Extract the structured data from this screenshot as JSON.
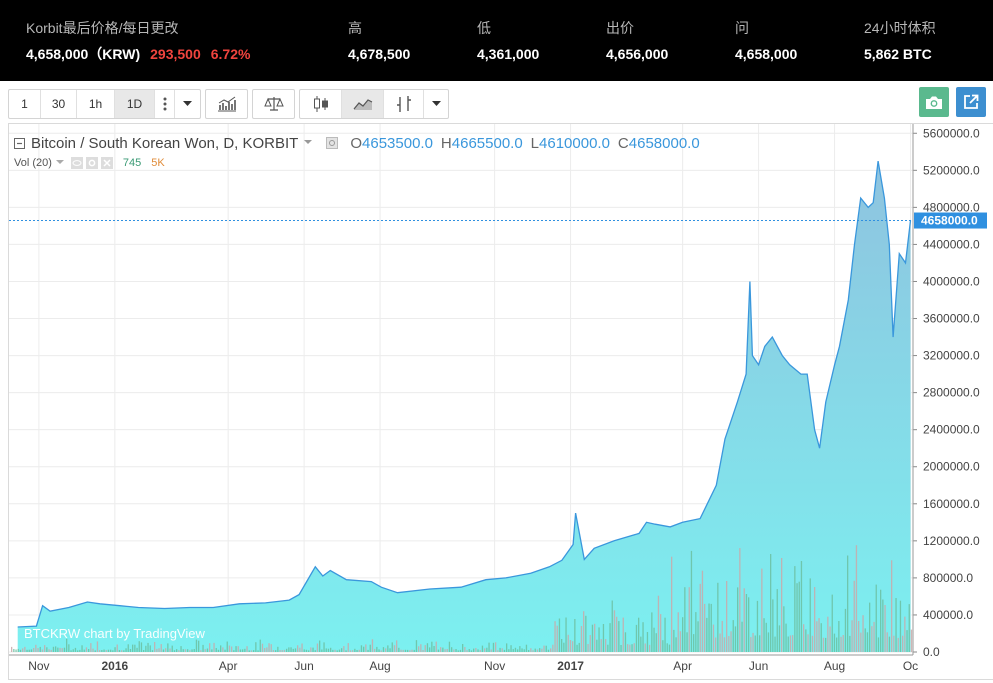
{
  "ticker": {
    "columns": [
      {
        "label": "Korbit最后价格/每日更改",
        "value": "4,658,000（KRW)"
      },
      {
        "label": "高",
        "value": "4,678,500"
      },
      {
        "label": "低",
        "value": "4,361,000"
      },
      {
        "label": "出价",
        "value": "4,656,000"
      },
      {
        "label": "问",
        "value": "4,658,000"
      },
      {
        "label": "24小时体积",
        "value": "5,862 BTC"
      }
    ],
    "change": "293,500",
    "change_pct": "6.72%"
  },
  "toolbar": {
    "intervals": [
      "1",
      "30",
      "1h",
      "1D"
    ],
    "active_interval": "1D",
    "icons": [
      "more-vert-icon",
      "dropdown-icon",
      "indicators-icon",
      "compare-icon",
      "candles-icon",
      "area-chart-icon",
      "bar-chart-icon",
      "dropdown-icon",
      "camera-icon",
      "popout-icon"
    ]
  },
  "legend": {
    "title": "Bitcoin / South Korean Won, D, KORBIT",
    "open_label": "O",
    "open": "4653500.0",
    "high_label": "H",
    "high": "4665500.0",
    "low_label": "L",
    "low": "4610000.0",
    "close_label": "C",
    "close": "4658000.0",
    "vol_label": "Vol (20)",
    "vol_value": "745",
    "vol_ma": "5K"
  },
  "watermark": "BTCKRW chart by TradingView",
  "colors": {
    "line": "#3a97dc",
    "area_top": "#8fc3df",
    "area_bottom": "#7cf0f0",
    "vol_green": "#6cbfa1",
    "vol_red": "#c9a9a9",
    "price_tag": "#2f90e0"
  },
  "chart_data": {
    "type": "area",
    "title": "Bitcoin / South Korean Won, D, KORBIT",
    "x": [
      "2015-10-15",
      "2015-10-30",
      "2015-11-04",
      "2015-11-10",
      "2015-11-25",
      "2015-12-10",
      "2015-12-20",
      "2016-01-05",
      "2016-01-20",
      "2016-02-10",
      "2016-03-01",
      "2016-03-20",
      "2016-04-10",
      "2016-05-01",
      "2016-05-20",
      "2016-05-28",
      "2016-06-10",
      "2016-06-16",
      "2016-06-22",
      "2016-07-05",
      "2016-07-25",
      "2016-08-02",
      "2016-08-15",
      "2016-09-10",
      "2016-10-05",
      "2016-10-25",
      "2016-11-10",
      "2016-11-30",
      "2016-12-15",
      "2016-12-25",
      "2017-01-03",
      "2017-01-05",
      "2017-01-12",
      "2017-01-20",
      "2017-02-05",
      "2017-02-25",
      "2017-03-03",
      "2017-03-10",
      "2017-03-22",
      "2017-04-01",
      "2017-04-15",
      "2017-04-28",
      "2017-05-05",
      "2017-05-15",
      "2017-05-22",
      "2017-05-25",
      "2017-05-27",
      "2017-06-01",
      "2017-06-06",
      "2017-06-12",
      "2017-06-20",
      "2017-06-26",
      "2017-07-05",
      "2017-07-10",
      "2017-07-16",
      "2017-07-20",
      "2017-07-25",
      "2017-08-01",
      "2017-08-05",
      "2017-08-12",
      "2017-08-17",
      "2017-08-22",
      "2017-08-28",
      "2017-09-01",
      "2017-09-05",
      "2017-09-10",
      "2017-09-14",
      "2017-09-17",
      "2017-09-22",
      "2017-09-27",
      "2017-10-01"
    ],
    "y": [
      270000,
      280000,
      500000,
      440000,
      480000,
      540000,
      520000,
      500000,
      480000,
      470000,
      480000,
      480000,
      520000,
      530000,
      560000,
      620000,
      920000,
      820000,
      880000,
      780000,
      760000,
      700000,
      640000,
      680000,
      700000,
      780000,
      800000,
      850000,
      920000,
      990000,
      1160000,
      1500000,
      1000000,
      1120000,
      1200000,
      1280000,
      1400000,
      1380000,
      1350000,
      1400000,
      1440000,
      1800000,
      2300000,
      2700000,
      3000000,
      4000000,
      3200000,
      3100000,
      3300000,
      3400000,
      3200000,
      3100000,
      3000000,
      3000000,
      2400000,
      2200000,
      2700000,
      3100000,
      3300000,
      3800000,
      4400000,
      4900000,
      4800000,
      4850000,
      5300000,
      4900000,
      4400000,
      3400000,
      4300000,
      4200000,
      4658000
    ],
    "ylim": [
      0,
      5700000
    ],
    "y_ticks": [
      "5600000.0",
      "5200000.0",
      "4800000.0",
      "4400000.0",
      "4000000.0",
      "3600000.0",
      "3200000.0",
      "2800000.0",
      "2400000.0",
      "2000000.0",
      "1600000.0",
      "1200000.0",
      "800000.0",
      "400000.0",
      "0.0"
    ],
    "y_tick_values": [
      5600000,
      5200000,
      4800000,
      4400000,
      4000000,
      3600000,
      3200000,
      2800000,
      2400000,
      2000000,
      1600000,
      1200000,
      800000,
      400000,
      0
    ],
    "x_tick_labels": [
      "Nov",
      "2016",
      "Apr",
      "Jun",
      "Aug",
      "Nov",
      "2017",
      "Apr",
      "Jun",
      "Aug",
      "Oc"
    ],
    "x_tick_dates": [
      "2015-11-01",
      "2016-01-01",
      "2016-04-01",
      "2016-06-01",
      "2016-08-01",
      "2016-11-01",
      "2017-01-01",
      "2017-04-01",
      "2017-06-01",
      "2017-08-01",
      "2017-10-01"
    ],
    "last_price": 4658000,
    "last_price_label": "4658000.0",
    "grid": true
  }
}
